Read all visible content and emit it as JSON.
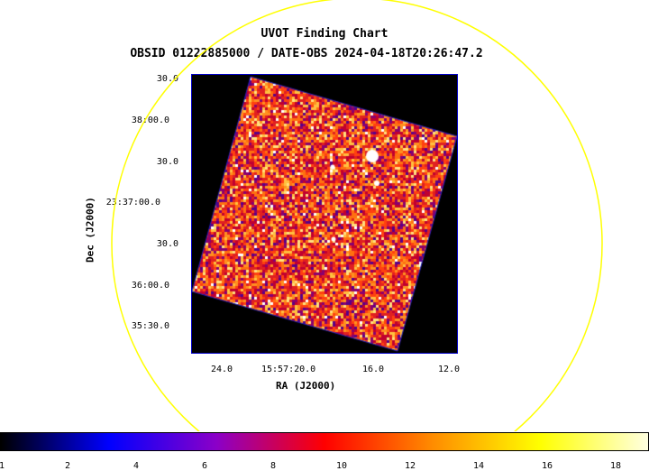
{
  "title": "UVOT Finding Chart",
  "subtitle": "OBSID 01222885000 / DATE-OBS 2024-04-18T20:26:47.2",
  "xaxis": {
    "label": "RA (J2000)",
    "ticks": [
      "24.0",
      "15:57:20.0",
      "16.0",
      "12.0"
    ]
  },
  "yaxis": {
    "label": "Dec (J2000)",
    "ticks": [
      "30.0",
      "38:00.0",
      "30.0",
      "23:37:00.0",
      "30.0",
      "36:00.0",
      "35:30.0"
    ]
  },
  "colorbar": {
    "ticks": [
      "1",
      "2",
      "4",
      "6",
      "8",
      "10",
      "12",
      "14",
      "16",
      "18"
    ],
    "colormap": [
      "#000000",
      "#0000ff",
      "#8b00c8",
      "#ff0000",
      "#ff8c00",
      "#ffff00",
      "#ffffe0"
    ]
  },
  "overlay_circle_color": "#ffff00",
  "frame_color": "#0000c8"
}
